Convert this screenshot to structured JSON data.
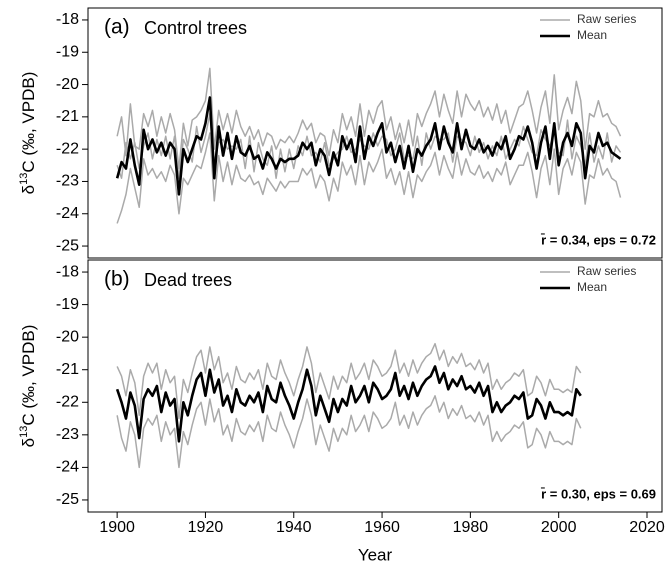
{
  "chart_data": [
    {
      "type": "line",
      "panel_label": "(a)",
      "title": "Control trees",
      "y_label_parts": [
        "δ",
        "13",
        "C (‰, VPDB)"
      ],
      "annotation": "r̄ = 0.34, eps = 0.72",
      "legend": "top-right",
      "xlim": [
        1893.4,
        2023.4
      ],
      "ylim": [
        -25.37,
        -17.63
      ],
      "yticks": [
        -25,
        -24,
        -23,
        -22,
        -21,
        -20,
        -19,
        -18
      ],
      "x": [
        1900,
        1901,
        1902,
        1903,
        1904,
        1905,
        1906,
        1907,
        1908,
        1909,
        1910,
        1911,
        1912,
        1913,
        1914,
        1915,
        1916,
        1917,
        1918,
        1919,
        1920,
        1921,
        1922,
        1923,
        1924,
        1925,
        1926,
        1927,
        1928,
        1929,
        1930,
        1931,
        1932,
        1933,
        1934,
        1935,
        1936,
        1937,
        1938,
        1939,
        1940,
        1941,
        1942,
        1943,
        1944,
        1945,
        1946,
        1947,
        1948,
        1949,
        1950,
        1951,
        1952,
        1953,
        1954,
        1955,
        1956,
        1957,
        1958,
        1959,
        1960,
        1961,
        1962,
        1963,
        1964,
        1965,
        1966,
        1967,
        1968,
        1969,
        1970,
        1971,
        1972,
        1973,
        1974,
        1975,
        1976,
        1977,
        1978,
        1979,
        1980,
        1981,
        1982,
        1983,
        1984,
        1985,
        1986,
        1987,
        1988,
        1989,
        1990,
        1991,
        1992,
        1993,
        1994,
        1995,
        1996,
        1997,
        1998,
        1999,
        2000,
        2001,
        2002,
        2003,
        2004,
        2005,
        2006,
        2007,
        2008,
        2009,
        2010,
        2011,
        2012,
        2013,
        2014
      ],
      "series": [
        {
          "name": "Raw series",
          "color": "#aaaaaa",
          "values": [
            -21.6,
            -21.0,
            -22.2,
            -20.6,
            -21.9,
            -22.0,
            -20.9,
            -21.3,
            -20.8,
            -21.6,
            -21.0,
            -21.5,
            -20.9,
            -21.4,
            -22.6,
            -21.2,
            -21.9,
            -21.1,
            -21.0,
            -20.8,
            -20.5,
            -19.5,
            -22.0,
            -20.8,
            -21.4,
            -20.9,
            -21.5,
            -20.8,
            -21.3,
            -21.6,
            -21.3,
            -21.7,
            -21.4,
            -21.9,
            -21.5,
            -21.6,
            -22.0,
            -21.7,
            -21.8,
            -21.6,
            -21.8,
            -21.5,
            -21.1,
            -21.4,
            -21.2,
            -21.8,
            -21.5,
            -21.6,
            -22.2,
            -21.4,
            -21.8,
            -20.9,
            -21.4,
            -21.0,
            -21.6,
            -20.6,
            -21.6,
            -20.8,
            -21.2,
            -20.7,
            -20.5,
            -21.4,
            -21.0,
            -21.7,
            -21.2,
            -21.8,
            -21.1,
            -21.9,
            -20.9,
            -21.3,
            -20.9,
            -20.6,
            -20.2,
            -21.0,
            -20.3,
            -20.8,
            -21.2,
            -20.2,
            -21.0,
            -20.3,
            -20.6,
            -20.8,
            -20.5,
            -21.0,
            -20.7,
            -21.1,
            -20.6,
            -21.2,
            -20.8,
            -21.5,
            -21.1,
            -20.7,
            -20.6,
            -20.2,
            -20.8,
            -21.5,
            -20.7,
            -20.2,
            -21.2,
            -19.7,
            -21.4,
            -20.8,
            -20.4,
            -20.9,
            -19.9,
            -20.5,
            -22.0,
            -20.9,
            -21.0,
            -20.5,
            -21.0,
            -20.9,
            -21.2,
            -21.3,
            -21.6
          ]
        },
        {
          "color": "#aaaaaa",
          "values": [
            -24.3,
            -23.9,
            -23.4,
            -22.6,
            -23.2,
            -23.8,
            -22.3,
            -22.8,
            -22.6,
            -22.9,
            -22.7,
            -23.0,
            -22.5,
            -22.8,
            -24.0,
            -22.9,
            -23.1,
            -22.8,
            -22.5,
            -22.6,
            -22.1,
            -21.5,
            -23.6,
            -22.2,
            -23.0,
            -22.4,
            -23.1,
            -22.5,
            -22.9,
            -23.0,
            -22.8,
            -23.1,
            -23.0,
            -23.4,
            -22.9,
            -23.1,
            -23.3,
            -23.0,
            -23.2,
            -23.0,
            -23.0,
            -23.0,
            -22.6,
            -22.8,
            -22.6,
            -23.2,
            -22.8,
            -23.0,
            -23.6,
            -22.9,
            -23.3,
            -22.4,
            -22.8,
            -22.5,
            -23.1,
            -22.2,
            -23.1,
            -22.4,
            -22.7,
            -22.4,
            -22.0,
            -22.9,
            -22.6,
            -23.1,
            -22.7,
            -23.4,
            -22.7,
            -23.5,
            -22.8,
            -23.0,
            -22.7,
            -22.5,
            -22.1,
            -22.8,
            -22.2,
            -22.6,
            -22.9,
            -22.1,
            -22.8,
            -22.3,
            -22.7,
            -22.8,
            -22.5,
            -22.9,
            -22.7,
            -23.0,
            -22.6,
            -22.8,
            -22.4,
            -23.1,
            -22.8,
            -22.5,
            -22.5,
            -22.1,
            -22.7,
            -23.5,
            -22.6,
            -22.2,
            -23.1,
            -22.0,
            -23.4,
            -22.6,
            -22.3,
            -22.8,
            -22.1,
            -22.4,
            -23.7,
            -22.8,
            -22.9,
            -22.3,
            -22.8,
            -22.6,
            -22.9,
            -23.0,
            -23.5
          ]
        },
        {
          "color": "#aaaaaa",
          "values": [
            -22.5,
            -22.9,
            -21.8,
            -22.3,
            -21.8,
            -22.6,
            -21.9,
            -21.5,
            -22.3,
            -21.7,
            -22.2,
            -21.6,
            -22.3,
            -21.6,
            -22.9,
            -21.7,
            -22.0,
            -22.4,
            -21.3,
            -22.1,
            -21.6,
            -20.9,
            -22.4,
            -21.8,
            -21.7,
            -22.0,
            -21.9,
            -22.0,
            -21.7,
            -22.6,
            -21.6,
            -22.7,
            -21.8,
            -22.3,
            -22.5,
            -21.9,
            -22.9,
            -22.0,
            -22.7,
            -22.0,
            -22.6,
            -21.9,
            -22.2,
            -21.6,
            -22.2,
            -22.1,
            -22.4,
            -21.8,
            -22.5,
            -22.3,
            -22.1,
            -22.0,
            -21.6,
            -22.1,
            -22.0,
            -21.7,
            -21.9,
            -22.0,
            -21.5,
            -21.9,
            -21.6,
            -21.7,
            -22.2,
            -22.0,
            -21.5,
            -22.3,
            -22.2,
            -22.3,
            -21.6,
            -22.5,
            -21.5,
            -22.0,
            -21.6,
            -21.7,
            -21.7,
            -21.5,
            -22.4,
            -21.6,
            -21.7,
            -21.8,
            -22.2,
            -21.6,
            -22.1,
            -21.8,
            -22.3,
            -21.9,
            -22.2,
            -21.6,
            -22.3,
            -22.0,
            -21.7,
            -21.9,
            -21.3,
            -21.7,
            -22.1,
            -22.2,
            -21.4,
            -21.7,
            -21.9,
            -21.5,
            -22.1,
            -22.2,
            -21.1,
            -22.3,
            -21.6,
            -21.9,
            -22.5,
            -21.5,
            -22.4,
            -21.9,
            -22.3,
            -21.5,
            -22.4,
            -21.9,
            -22.1
          ]
        },
        {
          "name": "Mean",
          "color": "#000000",
          "values": [
            -22.9,
            -22.4,
            -22.6,
            -21.7,
            -22.5,
            -23.1,
            -21.4,
            -22.0,
            -21.7,
            -22.1,
            -21.8,
            -22.2,
            -21.8,
            -22.0,
            -23.4,
            -22.0,
            -22.4,
            -22.0,
            -21.6,
            -21.7,
            -21.2,
            -20.4,
            -22.9,
            -21.3,
            -22.2,
            -21.5,
            -22.3,
            -21.6,
            -22.1,
            -22.2,
            -21.9,
            -22.3,
            -22.2,
            -22.6,
            -22.1,
            -22.3,
            -22.6,
            -22.3,
            -22.4,
            -22.3,
            -22.3,
            -22.2,
            -21.8,
            -22.0,
            -21.8,
            -22.5,
            -22.0,
            -22.2,
            -22.8,
            -22.1,
            -22.5,
            -21.6,
            -22.0,
            -21.7,
            -22.4,
            -21.3,
            -22.3,
            -21.6,
            -21.9,
            -21.5,
            -21.2,
            -22.1,
            -21.8,
            -22.4,
            -21.9,
            -22.6,
            -21.9,
            -22.7,
            -22.0,
            -22.2,
            -21.9,
            -21.7,
            -21.2,
            -22.0,
            -21.3,
            -21.8,
            -22.1,
            -21.2,
            -22.0,
            -21.4,
            -21.9,
            -22.0,
            -21.7,
            -22.1,
            -21.9,
            -22.2,
            -21.8,
            -22.0,
            -21.6,
            -22.3,
            -22.0,
            -21.6,
            -21.7,
            -21.3,
            -21.8,
            -22.6,
            -21.8,
            -21.3,
            -22.3,
            -21.2,
            -22.5,
            -21.8,
            -21.5,
            -21.9,
            -21.2,
            -21.5,
            -22.9,
            -21.9,
            -22.1,
            -21.5,
            -21.9,
            -21.8,
            -22.1,
            -22.2,
            -22.3
          ]
        }
      ]
    },
    {
      "type": "line",
      "panel_label": "(b)",
      "title": "Dead trees",
      "y_label_parts": [
        "δ",
        "13",
        "C (‰, VPDB)"
      ],
      "annotation": "r̄ = 0.30, eps = 0.69",
      "legend": "top-right",
      "x_label": "Year",
      "xlim": [
        1893.4,
        2023.4
      ],
      "xticks": [
        1900,
        1920,
        1940,
        1960,
        1980,
        2000,
        2020
      ],
      "ylim": [
        -25.37,
        -17.63
      ],
      "yticks": [
        -25,
        -24,
        -23,
        -22,
        -21,
        -20,
        -19,
        -18
      ],
      "x": [
        1900,
        1901,
        1902,
        1903,
        1904,
        1905,
        1906,
        1907,
        1908,
        1909,
        1910,
        1911,
        1912,
        1913,
        1914,
        1915,
        1916,
        1917,
        1918,
        1919,
        1920,
        1921,
        1922,
        1923,
        1924,
        1925,
        1926,
        1927,
        1928,
        1929,
        1930,
        1931,
        1932,
        1933,
        1934,
        1935,
        1936,
        1937,
        1938,
        1939,
        1940,
        1941,
        1942,
        1943,
        1944,
        1945,
        1946,
        1947,
        1948,
        1949,
        1950,
        1951,
        1952,
        1953,
        1954,
        1955,
        1956,
        1957,
        1958,
        1959,
        1960,
        1961,
        1962,
        1963,
        1964,
        1965,
        1966,
        1967,
        1968,
        1969,
        1970,
        1971,
        1972,
        1973,
        1974,
        1975,
        1976,
        1977,
        1978,
        1979,
        1980,
        1981,
        1982,
        1983,
        1984,
        1985,
        1986,
        1987,
        1988,
        1989,
        1990,
        1991,
        1992,
        1993,
        1994,
        1995,
        1996,
        1997,
        1998,
        1999,
        2000,
        2001,
        2002,
        2003,
        2004,
        2005
      ],
      "series": [
        {
          "name": "Raw series",
          "color": "#aaaaaa",
          "values": [
            -20.9,
            -21.2,
            -21.8,
            -21.0,
            -21.4,
            -22.4,
            -21.2,
            -20.8,
            -21.1,
            -20.8,
            -21.6,
            -21.0,
            -21.4,
            -21.2,
            -22.5,
            -21.3,
            -21.7,
            -21.1,
            -20.6,
            -20.4,
            -21.1,
            -20.3,
            -21.0,
            -20.6,
            -21.4,
            -21.1,
            -21.6,
            -20.9,
            -21.3,
            -21.4,
            -21.1,
            -21.3,
            -21.0,
            -21.6,
            -20.8,
            -21.2,
            -21.3,
            -20.7,
            -21.1,
            -21.4,
            -21.8,
            -21.3,
            -20.9,
            -20.3,
            -20.8,
            -21.7,
            -21.1,
            -21.5,
            -21.9,
            -21.2,
            -21.6,
            -21.2,
            -21.4,
            -20.8,
            -21.3,
            -21.1,
            -20.8,
            -21.3,
            -20.7,
            -20.9,
            -21.2,
            -21.1,
            -20.9,
            -20.4,
            -21.1,
            -20.8,
            -21.2,
            -20.7,
            -21.1,
            -20.8,
            -20.6,
            -20.5,
            -20.2,
            -20.7,
            -20.4,
            -20.9,
            -20.6,
            -20.8,
            -20.5,
            -20.9,
            -20.8,
            -21.0,
            -20.7,
            -21.1,
            -20.8,
            -21.6,
            -21.3,
            -21.6,
            -21.4,
            -21.3,
            -21.1,
            -21.2,
            -21.0,
            -21.8,
            -21.7,
            -21.2,
            -21.4,
            -21.8,
            -21.3,
            -21.6,
            -21.6,
            -21.7,
            -21.6,
            -21.7,
            -20.9,
            -21.1
          ]
        },
        {
          "color": "#aaaaaa",
          "values": [
            -22.4,
            -23.1,
            -23.5,
            -22.6,
            -23.0,
            -24.0,
            -22.8,
            -22.5,
            -22.7,
            -22.4,
            -23.2,
            -22.6,
            -23.0,
            -22.8,
            -24.0,
            -22.9,
            -23.3,
            -22.7,
            -22.2,
            -22.0,
            -22.7,
            -21.9,
            -22.6,
            -22.2,
            -23.0,
            -22.7,
            -23.2,
            -22.5,
            -22.9,
            -23.0,
            -22.7,
            -22.9,
            -22.6,
            -23.2,
            -22.4,
            -22.8,
            -22.9,
            -22.3,
            -22.7,
            -23.0,
            -23.4,
            -22.9,
            -22.5,
            -21.9,
            -22.4,
            -23.3,
            -22.7,
            -23.1,
            -23.5,
            -22.8,
            -23.2,
            -22.8,
            -23.0,
            -22.4,
            -22.9,
            -22.7,
            -22.4,
            -22.9,
            -22.3,
            -22.5,
            -22.8,
            -22.7,
            -22.5,
            -22.0,
            -22.7,
            -22.4,
            -22.8,
            -22.3,
            -22.7,
            -22.4,
            -22.2,
            -22.1,
            -21.8,
            -22.3,
            -22.0,
            -22.5,
            -22.2,
            -22.4,
            -22.1,
            -22.5,
            -22.4,
            -22.6,
            -22.3,
            -22.7,
            -22.4,
            -23.2,
            -22.9,
            -23.2,
            -23.0,
            -22.9,
            -22.7,
            -22.8,
            -22.6,
            -23.4,
            -23.3,
            -22.8,
            -23.0,
            -23.4,
            -22.9,
            -23.2,
            -23.2,
            -23.3,
            -23.2,
            -23.3,
            -22.5,
            -22.8
          ]
        },
        {
          "name": "Mean",
          "color": "#000000",
          "values": [
            -21.6,
            -22.0,
            -22.5,
            -21.7,
            -22.1,
            -23.1,
            -21.9,
            -21.6,
            -21.8,
            -21.5,
            -22.3,
            -21.7,
            -22.1,
            -21.9,
            -23.2,
            -22.0,
            -22.4,
            -21.8,
            -21.3,
            -21.1,
            -21.8,
            -21.0,
            -21.7,
            -21.3,
            -22.1,
            -21.8,
            -22.3,
            -21.6,
            -22.0,
            -22.1,
            -21.8,
            -22.0,
            -21.7,
            -22.3,
            -21.5,
            -21.9,
            -22.0,
            -21.4,
            -21.8,
            -22.1,
            -22.5,
            -22.0,
            -21.6,
            -21.0,
            -21.5,
            -22.4,
            -21.8,
            -22.2,
            -22.6,
            -21.9,
            -22.3,
            -21.9,
            -22.1,
            -21.5,
            -22.0,
            -21.8,
            -21.5,
            -22.0,
            -21.4,
            -21.6,
            -21.9,
            -21.8,
            -21.6,
            -21.1,
            -21.8,
            -21.5,
            -21.9,
            -21.4,
            -21.8,
            -21.5,
            -21.3,
            -21.2,
            -20.9,
            -21.4,
            -21.1,
            -21.6,
            -21.3,
            -21.5,
            -21.2,
            -21.6,
            -21.5,
            -21.7,
            -21.4,
            -21.8,
            -21.5,
            -22.3,
            -22.0,
            -22.3,
            -22.1,
            -22.0,
            -21.8,
            -21.9,
            -21.7,
            -22.5,
            -22.4,
            -21.9,
            -22.1,
            -22.5,
            -22.0,
            -22.3,
            -22.3,
            -22.4,
            -22.3,
            -22.4,
            -21.6,
            -21.8
          ]
        }
      ]
    }
  ]
}
